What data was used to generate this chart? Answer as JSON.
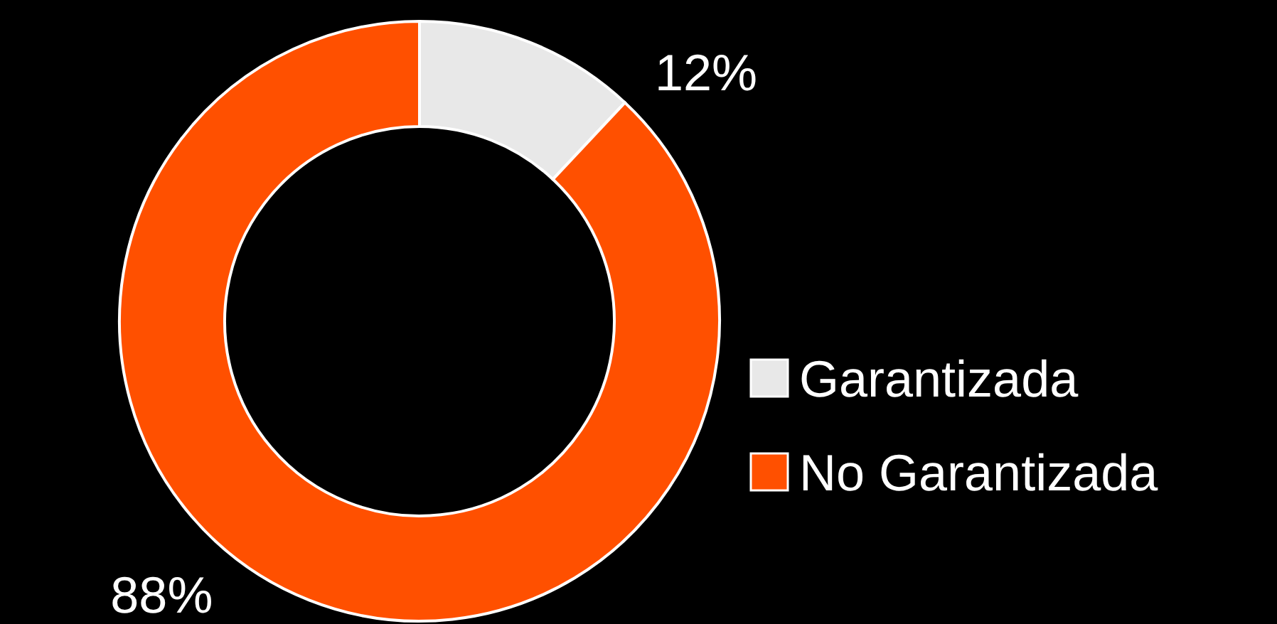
{
  "chart_data": {
    "type": "donut",
    "categories": [
      "Garantizada",
      "No Garantizada"
    ],
    "values": [
      12,
      88
    ],
    "colors": [
      "#e8e8e8",
      "#ff5000"
    ],
    "value_labels": [
      "12%",
      "88%"
    ],
    "legend": "right"
  }
}
